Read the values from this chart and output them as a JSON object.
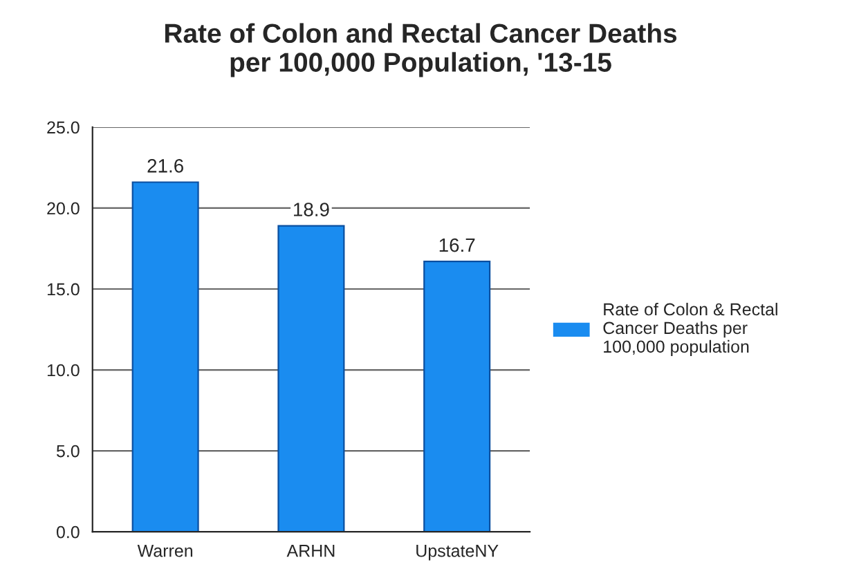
{
  "chart_data": {
    "type": "bar",
    "title": "Rate of Colon and Rectal Cancer Deaths\nper 100,000 Population, '13-15",
    "categories": [
      "Warren",
      "ARHN",
      "UpstateNY"
    ],
    "series": [
      {
        "name": "Rate of Colon & Rectal\nCancer Deaths per\n100,000 population",
        "color": "#1a8cf0",
        "values": [
          21.6,
          18.9,
          16.7
        ]
      }
    ],
    "ylim": [
      0,
      25
    ],
    "yticks": [
      {
        "value": 0,
        "label": "0.0"
      },
      {
        "value": 5,
        "label": "5.0"
      },
      {
        "value": 10,
        "label": "10.0"
      },
      {
        "value": 15,
        "label": "15.0"
      },
      {
        "value": 20,
        "label": "20.0"
      },
      {
        "value": 25,
        "label": "25.0"
      }
    ],
    "grid": "y",
    "legend": "right",
    "data_labels": true
  }
}
